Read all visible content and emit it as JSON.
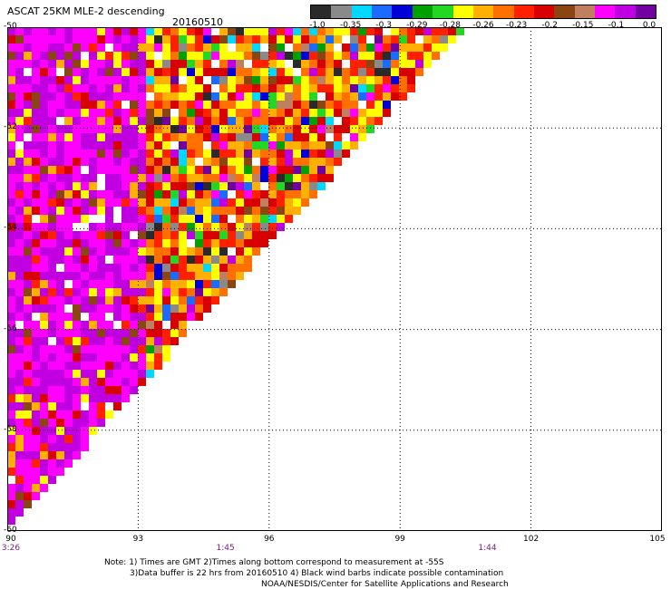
{
  "header": {
    "title": "ASCAT 25KM MLE-2 descending",
    "date": "20160510"
  },
  "colorbar": {
    "labels": [
      "-1.0",
      "-0.35",
      "-0.3",
      "-0.29",
      "-0.28",
      "-0.26",
      "-0.23",
      "-0.2",
      "-0.15",
      "-0.1",
      "0.0"
    ],
    "colors": [
      "#2a2a2a",
      "#8a8a8a",
      "#00d8ff",
      "#1c6bff",
      "#0000d8",
      "#00a000",
      "#22d822",
      "#ffff00",
      "#ffb000",
      "#ff7000",
      "#ff2000",
      "#d80000",
      "#8b4513",
      "#c08060",
      "#ff00ff",
      "#c000e0",
      "#7000a0"
    ]
  },
  "map": {
    "lat_labels": [
      "-50",
      "-52",
      "-54",
      "-56",
      "-58",
      "-60"
    ],
    "lon_labels": [
      "90",
      "93",
      "96",
      "99",
      "102",
      "105"
    ],
    "lat_range": [
      -60,
      -50
    ],
    "lon_range": [
      90,
      105
    ],
    "time_labels": [
      {
        "text": "3:26",
        "lon": 90
      },
      {
        "text": "1:45",
        "lon": 95
      },
      {
        "text": "1:44",
        "lon": 101
      }
    ],
    "swath_edge": [
      [
        100.5,
        -50
      ],
      [
        90,
        -60
      ]
    ],
    "grid": "dotted"
  },
  "notes": [
    "Note: 1) Times are GMT 2)Times along bottom correspond to measurement at -55S",
    "3)Data buffer is 22 hrs from 20160510 4) Black wind barbs indicate possible contamination",
    "NOAA/NESDIS/Center for Satellite Applications and Research"
  ]
}
